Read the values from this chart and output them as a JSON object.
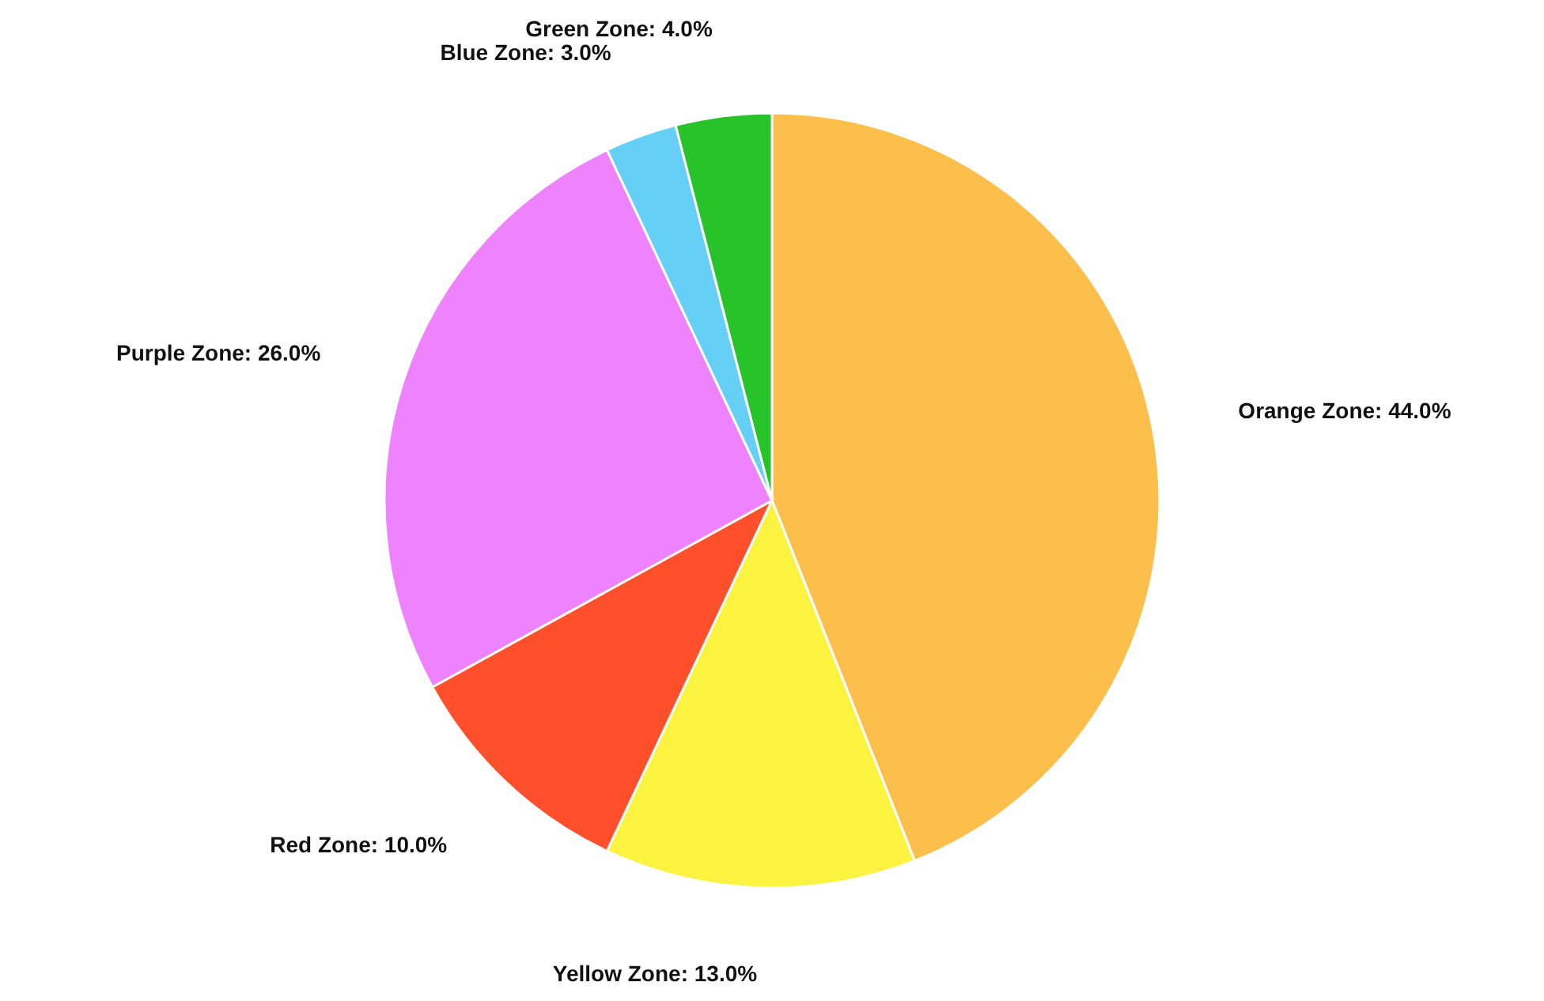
{
  "chart_data": {
    "type": "pie",
    "categories": [
      "Orange Zone",
      "Yellow Zone",
      "Red Zone",
      "Purple Zone",
      "Blue Zone",
      "Green Zone"
    ],
    "values": [
      44,
      13,
      10,
      26,
      3,
      4
    ],
    "value_labels": [
      "44.0%",
      "13.0%",
      "10.0%",
      "26.0%",
      "3.0%",
      "4.0%"
    ],
    "colors": [
      "#fdbf4b",
      "#fbf33f",
      "#ff4f2b",
      "#ee82ff",
      "#66cff5",
      "#28c22a"
    ]
  }
}
